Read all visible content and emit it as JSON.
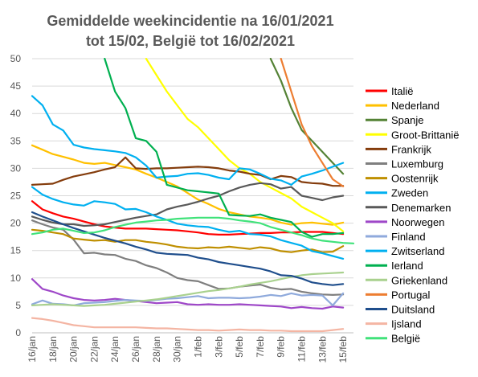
{
  "chart_data": {
    "type": "line",
    "title_lines": [
      "Gemiddelde weekincidentie  na 16/01/2021",
      "tot 15/02, België tot 16/02/2021"
    ],
    "xlabel": "",
    "ylabel": "",
    "ylim": [
      0,
      50
    ],
    "y_ticks": [
      0,
      5,
      10,
      15,
      20,
      25,
      30,
      35,
      40,
      45,
      50
    ],
    "x": [
      "16/jan",
      "17/jan",
      "18/jan",
      "19/jan",
      "20/jan",
      "21/jan",
      "22/jan",
      "23/jan",
      "24/jan",
      "25/jan",
      "26/jan",
      "27/jan",
      "28/jan",
      "29/jan",
      "30/jan",
      "31/jan",
      "1/feb",
      "2/feb",
      "3/feb",
      "4/feb",
      "5/feb",
      "6/feb",
      "7/feb",
      "8/feb",
      "9/feb",
      "10/feb",
      "11/feb",
      "12/feb",
      "13/feb",
      "14/feb",
      "15/feb",
      "16/feb"
    ],
    "x_tick_labels": [
      "16/jan",
      "18/jan",
      "20/jan",
      "22/jan",
      "24/jan",
      "26/jan",
      "28/jan",
      "30/jan",
      "1/feb",
      "3/feb",
      "5/feb",
      "7/feb",
      "9/feb",
      "11/feb",
      "13/feb",
      "15/feb"
    ],
    "grid": true,
    "legend_position": "right",
    "series": [
      {
        "name": "Italië",
        "color": "#ff0000",
        "values": [
          24,
          22.5,
          21.8,
          21.2,
          20.8,
          20.3,
          19.8,
          19.4,
          19.2,
          19.0,
          19.0,
          19.0,
          18.9,
          18.8,
          18.7,
          18.5,
          18.3,
          18.0,
          17.9,
          17.9,
          18.0,
          18.1,
          18.2,
          18.2,
          18.3,
          18.3,
          18.4,
          18.4,
          18.4,
          18.2,
          18.0,
          null
        ]
      },
      {
        "name": "Nederland",
        "color": "#ffc000",
        "values": [
          34.2,
          33.4,
          32.6,
          32.1,
          31.6,
          31.0,
          30.8,
          31.0,
          30.6,
          30.2,
          29.8,
          29.0,
          28.3,
          27.5,
          26.7,
          25.5,
          24.3,
          23.5,
          22.6,
          22.0,
          21.6,
          21.2,
          21.0,
          20.7,
          20.1,
          19.7,
          20.0,
          20.1,
          19.9,
          19.7,
          20.1,
          null
        ]
      },
      {
        "name": "Spanje",
        "color": "#548235",
        "values": [
          null,
          null,
          null,
          null,
          null,
          null,
          null,
          null,
          null,
          null,
          null,
          null,
          null,
          null,
          null,
          null,
          null,
          null,
          null,
          null,
          null,
          null,
          null,
          50,
          46,
          41,
          37,
          35,
          33,
          31,
          29,
          null
        ]
      },
      {
        "name": "Groot-Brittanië",
        "color": "#ffff00",
        "values": [
          null,
          null,
          null,
          null,
          null,
          null,
          null,
          null,
          null,
          null,
          null,
          50,
          47,
          44,
          41.5,
          39,
          37.5,
          35.5,
          33.5,
          31.5,
          30,
          29,
          27.5,
          26.5,
          25.5,
          24.5,
          23,
          22,
          21,
          20,
          18.5,
          null
        ]
      },
      {
        "name": "Frankrijk",
        "color": "#843c0c",
        "values": [
          27.0,
          27.1,
          27.2,
          27.9,
          28.5,
          28.9,
          29.3,
          29.8,
          30.2,
          32.0,
          30.0,
          29.9,
          30.0,
          30.0,
          30.1,
          30.2,
          30.3,
          30.2,
          30.0,
          29.6,
          29.4,
          29.0,
          28.8,
          28.0,
          28.6,
          28.4,
          27.5,
          27.3,
          27.2,
          26.8,
          26.8,
          null
        ]
      },
      {
        "name": "Luxemburg",
        "color": "#7f7f7f",
        "values": [
          20.5,
          19.8,
          19.2,
          18.8,
          17.0,
          14.5,
          14.6,
          14.3,
          14.2,
          13.5,
          13.1,
          12.3,
          11.8,
          11.0,
          10.0,
          9.6,
          9.4,
          8.7,
          8.0,
          8.1,
          8.4,
          8.6,
          8.8,
          8.2,
          7.9,
          8.0,
          7.5,
          7.2,
          7.0,
          6.9,
          7.0,
          null
        ]
      },
      {
        "name": "Oostenrijk",
        "color": "#bf8f00",
        "values": [
          18.8,
          18.6,
          18.3,
          18.0,
          17.2,
          17.0,
          16.8,
          16.9,
          16.6,
          16.9,
          16.9,
          16.6,
          16.4,
          16.1,
          15.7,
          15.5,
          15.4,
          15.6,
          15.5,
          15.7,
          15.5,
          15.3,
          15.6,
          15.4,
          14.9,
          14.7,
          15.0,
          15.2,
          14.7,
          14.8,
          15.8,
          null
        ]
      },
      {
        "name": "Zweden",
        "color": "#00b0f0",
        "values": [
          43.2,
          41.5,
          38.0,
          36.9,
          34.3,
          33.8,
          33.5,
          33.3,
          33.1,
          32.8,
          32.0,
          30.5,
          28.3,
          28.5,
          28.6,
          29.0,
          29.1,
          28.8,
          28.3,
          28.0,
          30.0,
          29.8,
          29.0,
          28.1,
          27.8,
          27.0,
          28.5,
          29.0,
          29.6,
          30.3,
          31.0,
          null
        ]
      },
      {
        "name": "Denemarken",
        "color": "#595959",
        "values": [
          21.2,
          20.6,
          20.1,
          19.8,
          19.8,
          19.5,
          19.6,
          19.8,
          20.2,
          20.6,
          21.0,
          21.3,
          21.6,
          22.5,
          23.0,
          23.4,
          23.9,
          24.5,
          25.0,
          25.8,
          26.5,
          27.0,
          27.3,
          27.1,
          26.3,
          26.6,
          25.0,
          24.6,
          24.2,
          24.7,
          25.0,
          null
        ]
      },
      {
        "name": "Noorwegen",
        "color": "#9e47c8",
        "values": [
          9.8,
          8.0,
          7.5,
          6.8,
          6.3,
          6.0,
          5.9,
          6.0,
          6.2,
          6.0,
          5.8,
          5.6,
          5.4,
          5.5,
          5.6,
          5.2,
          5.1,
          5.2,
          5.1,
          5.1,
          5.2,
          5.1,
          5.0,
          4.9,
          4.8,
          4.5,
          4.7,
          4.5,
          4.4,
          4.8,
          4.6,
          null
        ]
      },
      {
        "name": "Finland",
        "color": "#8faadc",
        "values": [
          5.2,
          5.9,
          5.3,
          5.2,
          5.0,
          5.4,
          5.5,
          5.6,
          5.8,
          6.0,
          5.9,
          5.8,
          6.0,
          6.2,
          6.3,
          6.5,
          6.7,
          6.3,
          6.4,
          6.4,
          6.3,
          6.4,
          6.6,
          6.9,
          6.7,
          7.2,
          6.8,
          6.9,
          6.8,
          5.0,
          7.2,
          null
        ]
      },
      {
        "name": "Zwitserland",
        "color": "#00b0f0",
        "values": [
          26.6,
          25.2,
          24.4,
          23.8,
          23.4,
          23.2,
          24.0,
          23.8,
          23.5,
          22.5,
          22.6,
          22.0,
          21.2,
          20.6,
          19.9,
          19.6,
          19.4,
          19.3,
          18.8,
          18.4,
          18.6,
          18.0,
          17.9,
          17.6,
          16.9,
          16.4,
          15.9,
          14.9,
          14.5,
          14.0,
          13.5,
          null
        ]
      },
      {
        "name": "Ierland",
        "color": "#00b050",
        "values": [
          null,
          null,
          null,
          null,
          null,
          null,
          null,
          50,
          44,
          41,
          35.5,
          35,
          33,
          27,
          26.5,
          26,
          25.8,
          25.6,
          25.4,
          21.5,
          21.4,
          21.3,
          21.6,
          21.0,
          20.6,
          20.2,
          18.4,
          17.5,
          18.0,
          18.0,
          18.2,
          null
        ]
      },
      {
        "name": "Griekenland",
        "color": "#a9d18e",
        "values": [
          5.0,
          5.1,
          5.2,
          5.1,
          5.0,
          4.9,
          5.0,
          5.1,
          5.3,
          5.5,
          5.7,
          5.9,
          6.1,
          6.4,
          6.7,
          7.0,
          7.3,
          7.6,
          7.8,
          8.1,
          8.4,
          8.8,
          9.1,
          9.4,
          9.8,
          10.2,
          10.5,
          10.7,
          10.8,
          10.9,
          11.0,
          null
        ]
      },
      {
        "name": "Portugal",
        "color": "#ed7d31",
        "values": [
          null,
          null,
          null,
          null,
          null,
          null,
          null,
          null,
          null,
          null,
          null,
          null,
          null,
          null,
          null,
          null,
          null,
          null,
          null,
          null,
          null,
          null,
          null,
          null,
          50,
          44,
          38,
          34,
          31,
          28,
          26.7,
          null
        ]
      },
      {
        "name": "Duitsland",
        "color": "#1f4e8c",
        "values": [
          22.0,
          21.2,
          20.5,
          19.8,
          19.1,
          18.5,
          17.9,
          17.3,
          16.8,
          16.3,
          15.7,
          15.2,
          14.6,
          14.4,
          14.3,
          14.2,
          13.7,
          13.4,
          12.9,
          12.6,
          12.3,
          12.0,
          11.7,
          11.2,
          10.5,
          10.4,
          9.9,
          9.2,
          8.9,
          8.7,
          8.9,
          null
        ]
      },
      {
        "name": "Ijsland",
        "color": "#f4b5a3",
        "values": [
          2.7,
          2.5,
          2.2,
          1.8,
          1.4,
          1.2,
          1.0,
          1.0,
          1.0,
          1.0,
          1.0,
          0.9,
          0.8,
          0.8,
          0.7,
          0.6,
          0.5,
          0.5,
          0.4,
          0.5,
          0.6,
          0.5,
          0.5,
          0.4,
          0.4,
          0.3,
          0.3,
          0.3,
          0.3,
          0.5,
          0.7,
          null
        ]
      },
      {
        "name": "België",
        "color": "#40e27a",
        "values": [
          18.0,
          18.3,
          18.8,
          19.0,
          18.6,
          18.2,
          18.3,
          18.7,
          19.3,
          19.7,
          20.1,
          20.3,
          20.5,
          20.6,
          20.8,
          20.9,
          21.0,
          21.0,
          21.0,
          20.8,
          20.5,
          20.3,
          20.0,
          19.3,
          18.8,
          18.3,
          17.8,
          17.2,
          16.8,
          16.6,
          16.4,
          16.3
        ]
      }
    ]
  }
}
